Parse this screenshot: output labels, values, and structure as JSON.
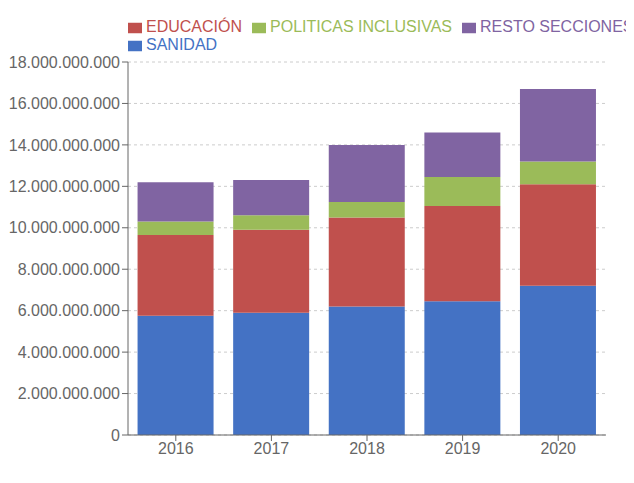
{
  "chart_data": {
    "type": "bar",
    "stacked": true,
    "categories": [
      "2016",
      "2017",
      "2018",
      "2019",
      "2020"
    ],
    "series": [
      {
        "name": "SANIDAD",
        "color": "#4472C4",
        "values": [
          5750000000,
          5900000000,
          6200000000,
          6450000000,
          7200000000
        ]
      },
      {
        "name": "EDUCACIÓN",
        "color": "#C0504D",
        "values": [
          3900000000,
          4000000000,
          4300000000,
          4600000000,
          4900000000
        ]
      },
      {
        "name": "POLITICAS INCLUSIVAS",
        "color": "#9BBB59",
        "values": [
          650000000,
          700000000,
          750000000,
          1400000000,
          1100000000
        ]
      },
      {
        "name": "RESTO SECCIONES",
        "color": "#8064A2",
        "values": [
          1900000000,
          1700000000,
          2750000000,
          2150000000,
          3500000000
        ]
      }
    ],
    "ylim": [
      0,
      18000000000
    ],
    "yticks": [
      0,
      {
        "value": 2000000000,
        "label": "2.000.000.000"
      },
      {
        "value": 4000000000,
        "label": "4.000.000.000"
      },
      {
        "value": 6000000000,
        "label": "6.000.000.000"
      },
      {
        "value": 8000000000,
        "label": "8.000.000.000"
      },
      {
        "value": 10000000000,
        "label": "10.000.000.000"
      },
      {
        "value": 12000000000,
        "label": "12.000.000.000"
      },
      {
        "value": 14000000000,
        "label": "14.000.000.000"
      },
      {
        "value": 16000000000,
        "label": "16.000.000.000"
      },
      {
        "value": 18000000000,
        "label": "18.000.000.000"
      }
    ],
    "grid": true,
    "legend": "upper left"
  }
}
